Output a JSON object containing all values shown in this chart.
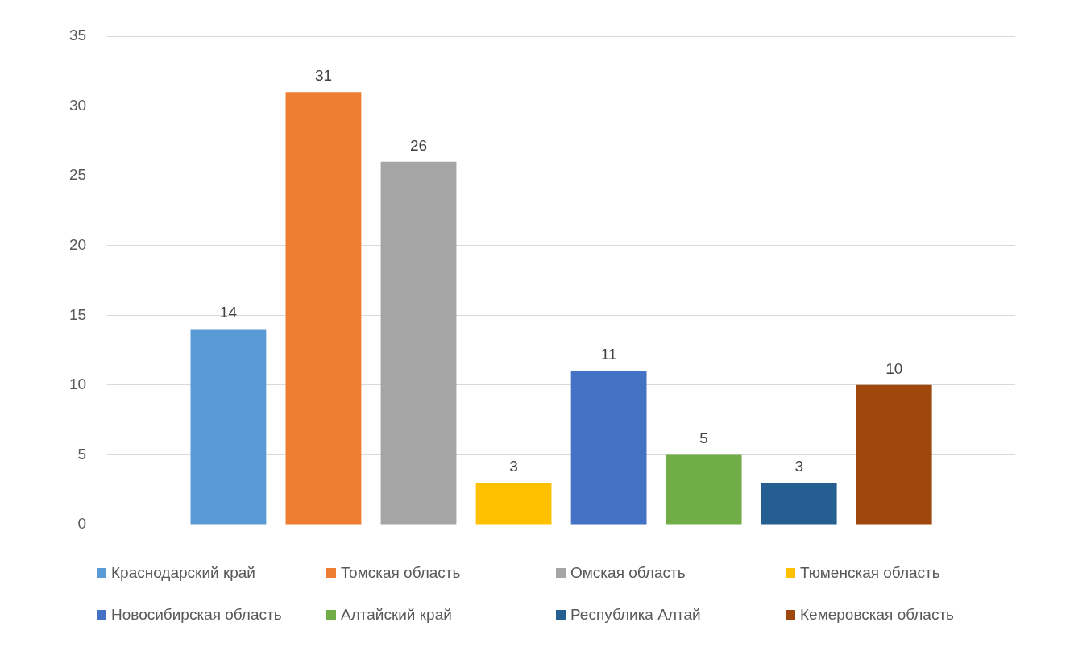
{
  "chart_data": {
    "type": "bar",
    "categories": [
      null
    ],
    "series": [
      {
        "name": "Краснодарский край",
        "color": "#5b9bd5",
        "values": [
          14
        ]
      },
      {
        "name": "Томская область",
        "color": "#ed7d31",
        "values": [
          31
        ]
      },
      {
        "name": "Омская область",
        "color": "#a5a5a5",
        "values": [
          26
        ]
      },
      {
        "name": "Тюменская область",
        "color": "#ffc000",
        "values": [
          3
        ]
      },
      {
        "name": "Новосибирская область",
        "color": "#4472c4",
        "values": [
          11
        ]
      },
      {
        "name": "Алтайский край",
        "color": "#70ad47",
        "values": [
          5
        ]
      },
      {
        "name": "Республика Алтай",
        "color": "#255e91",
        "values": [
          3
        ]
      },
      {
        "name": "Кемеровская область",
        "color": "#9e480e",
        "values": [
          10
        ]
      }
    ],
    "ylim": [
      0,
      35
    ],
    "yticks": [
      0,
      5,
      10,
      15,
      20,
      25,
      30,
      35
    ],
    "grid": "y",
    "legend": "bottom",
    "tick_labels": "y",
    "data_labels": true
  }
}
